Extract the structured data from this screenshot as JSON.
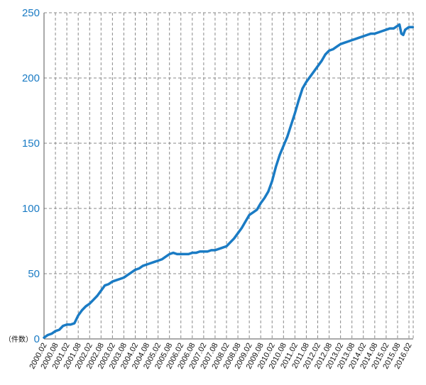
{
  "chart_data": {
    "type": "line",
    "unit_label": "（件数）",
    "ylim": [
      0,
      250
    ],
    "yticks": [
      0,
      50,
      100,
      150,
      200,
      250
    ],
    "grid": true,
    "x_labels": [
      "2000.02",
      "2000.08",
      "2001.02",
      "2001.08",
      "2002.02",
      "2002.08",
      "2003.02",
      "2003.08",
      "2004.02",
      "2004.08",
      "2005.02",
      "2005.08",
      "2006.02",
      "2006.08",
      "2007.02",
      "2007.08",
      "2008.02",
      "2008.08",
      "2009.02",
      "2009.08",
      "2010.02",
      "2010.08",
      "2011.02",
      "2011.08",
      "2012.02",
      "2012.08",
      "2013.02",
      "2013.08",
      "2014.02",
      "2014.08",
      "2015.02",
      "2015.08",
      "2016.02"
    ],
    "series": [
      {
        "color": "#1a7bc4",
        "points": [
          [
            "2000.02",
            1
          ],
          [
            "2000.04",
            3
          ],
          [
            "2000.06",
            4
          ],
          [
            "2000.08",
            6
          ],
          [
            "2000.10",
            7
          ],
          [
            "2000.12",
            10
          ],
          [
            "2001.02",
            11
          ],
          [
            "2001.04",
            11
          ],
          [
            "2001.06",
            12
          ],
          [
            "2001.08",
            18
          ],
          [
            "2001.10",
            22
          ],
          [
            "2001.12",
            25
          ],
          [
            "2002.02",
            27
          ],
          [
            "2002.04",
            30
          ],
          [
            "2002.06",
            33
          ],
          [
            "2002.08",
            37
          ],
          [
            "2002.10",
            41
          ],
          [
            "2002.12",
            42
          ],
          [
            "2003.02",
            44
          ],
          [
            "2003.04",
            45
          ],
          [
            "2003.06",
            46
          ],
          [
            "2003.08",
            47
          ],
          [
            "2003.10",
            49
          ],
          [
            "2003.12",
            51
          ],
          [
            "2004.02",
            53
          ],
          [
            "2004.04",
            54
          ],
          [
            "2004.06",
            56
          ],
          [
            "2004.08",
            57
          ],
          [
            "2004.10",
            58
          ],
          [
            "2004.12",
            59
          ],
          [
            "2005.02",
            60
          ],
          [
            "2005.04",
            61
          ],
          [
            "2005.06",
            63
          ],
          [
            "2005.08",
            65
          ],
          [
            "2005.10",
            66
          ],
          [
            "2005.12",
            65
          ],
          [
            "2006.02",
            65
          ],
          [
            "2006.04",
            65
          ],
          [
            "2006.06",
            65
          ],
          [
            "2006.08",
            66
          ],
          [
            "2006.10",
            66
          ],
          [
            "2006.12",
            67
          ],
          [
            "2007.02",
            67
          ],
          [
            "2007.04",
            67
          ],
          [
            "2007.06",
            68
          ],
          [
            "2007.08",
            68
          ],
          [
            "2007.10",
            69
          ],
          [
            "2007.12",
            70
          ],
          [
            "2008.02",
            71
          ],
          [
            "2008.04",
            74
          ],
          [
            "2008.06",
            77
          ],
          [
            "2008.08",
            81
          ],
          [
            "2008.10",
            85
          ],
          [
            "2008.12",
            90
          ],
          [
            "2009.02",
            95
          ],
          [
            "2009.04",
            97
          ],
          [
            "2009.06",
            99
          ],
          [
            "2009.08",
            104
          ],
          [
            "2009.10",
            108
          ],
          [
            "2009.12",
            113
          ],
          [
            "2010.02",
            121
          ],
          [
            "2010.04",
            132
          ],
          [
            "2010.06",
            141
          ],
          [
            "2010.08",
            148
          ],
          [
            "2010.10",
            155
          ],
          [
            "2010.12",
            164
          ],
          [
            "2011.02",
            173
          ],
          [
            "2011.04",
            183
          ],
          [
            "2011.06",
            192
          ],
          [
            "2011.08",
            197
          ],
          [
            "2011.10",
            201
          ],
          [
            "2011.12",
            205
          ],
          [
            "2012.02",
            209
          ],
          [
            "2012.04",
            213
          ],
          [
            "2012.06",
            218
          ],
          [
            "2012.08",
            221
          ],
          [
            "2012.10",
            222
          ],
          [
            "2012.12",
            224
          ],
          [
            "2013.02",
            226
          ],
          [
            "2013.04",
            227
          ],
          [
            "2013.06",
            228
          ],
          [
            "2013.08",
            229
          ],
          [
            "2013.10",
            230
          ],
          [
            "2013.12",
            231
          ],
          [
            "2014.02",
            232
          ],
          [
            "2014.04",
            233
          ],
          [
            "2014.06",
            234
          ],
          [
            "2014.08",
            234
          ],
          [
            "2014.10",
            235
          ],
          [
            "2014.12",
            236
          ],
          [
            "2015.02",
            237
          ],
          [
            "2015.04",
            238
          ],
          [
            "2015.06",
            238
          ],
          [
            "2015.08",
            240
          ],
          [
            "2015.09",
            241
          ],
          [
            "2015.10",
            234
          ],
          [
            "2015.11",
            233
          ],
          [
            "2015.12",
            237
          ],
          [
            "2016.02",
            239
          ],
          [
            "2016.04",
            239
          ]
        ]
      }
    ]
  }
}
